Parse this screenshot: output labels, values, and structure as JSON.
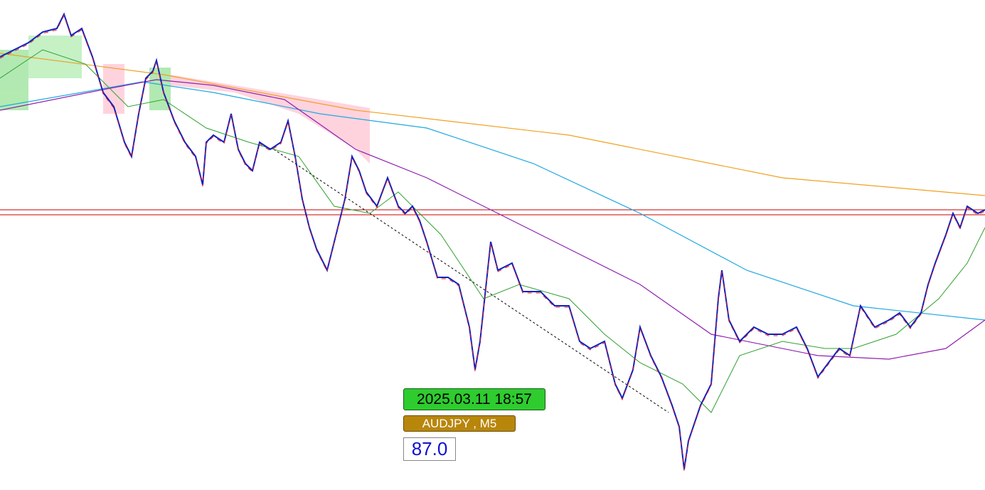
{
  "overlay": {
    "time_label": "2025.03.11 18:57",
    "symbol_label": "AUDJPY , M5",
    "value_label": "87.0"
  }
}
